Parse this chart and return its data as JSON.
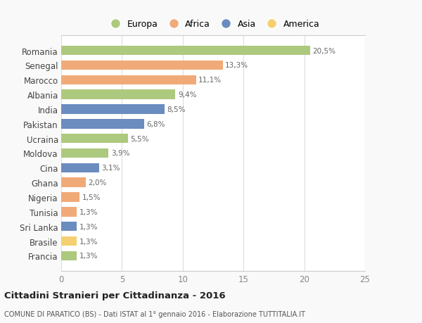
{
  "countries": [
    "Romania",
    "Senegal",
    "Marocco",
    "Albania",
    "India",
    "Pakistan",
    "Ucraina",
    "Moldova",
    "Cina",
    "Ghana",
    "Nigeria",
    "Tunisia",
    "Sri Lanka",
    "Brasile",
    "Francia"
  ],
  "values": [
    20.5,
    13.3,
    11.1,
    9.4,
    8.5,
    6.8,
    5.5,
    3.9,
    3.1,
    2.0,
    1.5,
    1.3,
    1.3,
    1.3,
    1.3
  ],
  "labels": [
    "20,5%",
    "13,3%",
    "11,1%",
    "9,4%",
    "8,5%",
    "6,8%",
    "5,5%",
    "3,9%",
    "3,1%",
    "2,0%",
    "1,5%",
    "1,3%",
    "1,3%",
    "1,3%",
    "1,3%"
  ],
  "regions": [
    "Europa",
    "Africa",
    "Africa",
    "Europa",
    "Asia",
    "Asia",
    "Europa",
    "Europa",
    "Asia",
    "Africa",
    "Africa",
    "Africa",
    "Asia",
    "America",
    "Europa"
  ],
  "colors": {
    "Europa": "#adc97e",
    "Africa": "#f0aa78",
    "Asia": "#6b8cbf",
    "America": "#f5d070"
  },
  "legend_order": [
    "Europa",
    "Africa",
    "Asia",
    "America"
  ],
  "xlim": [
    0,
    25
  ],
  "xticks": [
    0,
    5,
    10,
    15,
    20,
    25
  ],
  "title": "Cittadini Stranieri per Cittadinanza - 2016",
  "subtitle": "COMUNE DI PARATICO (BS) - Dati ISTAT al 1° gennaio 2016 - Elaborazione TUTTITALIA.IT",
  "background_color": "#f9f9f9",
  "bar_background": "#ffffff"
}
